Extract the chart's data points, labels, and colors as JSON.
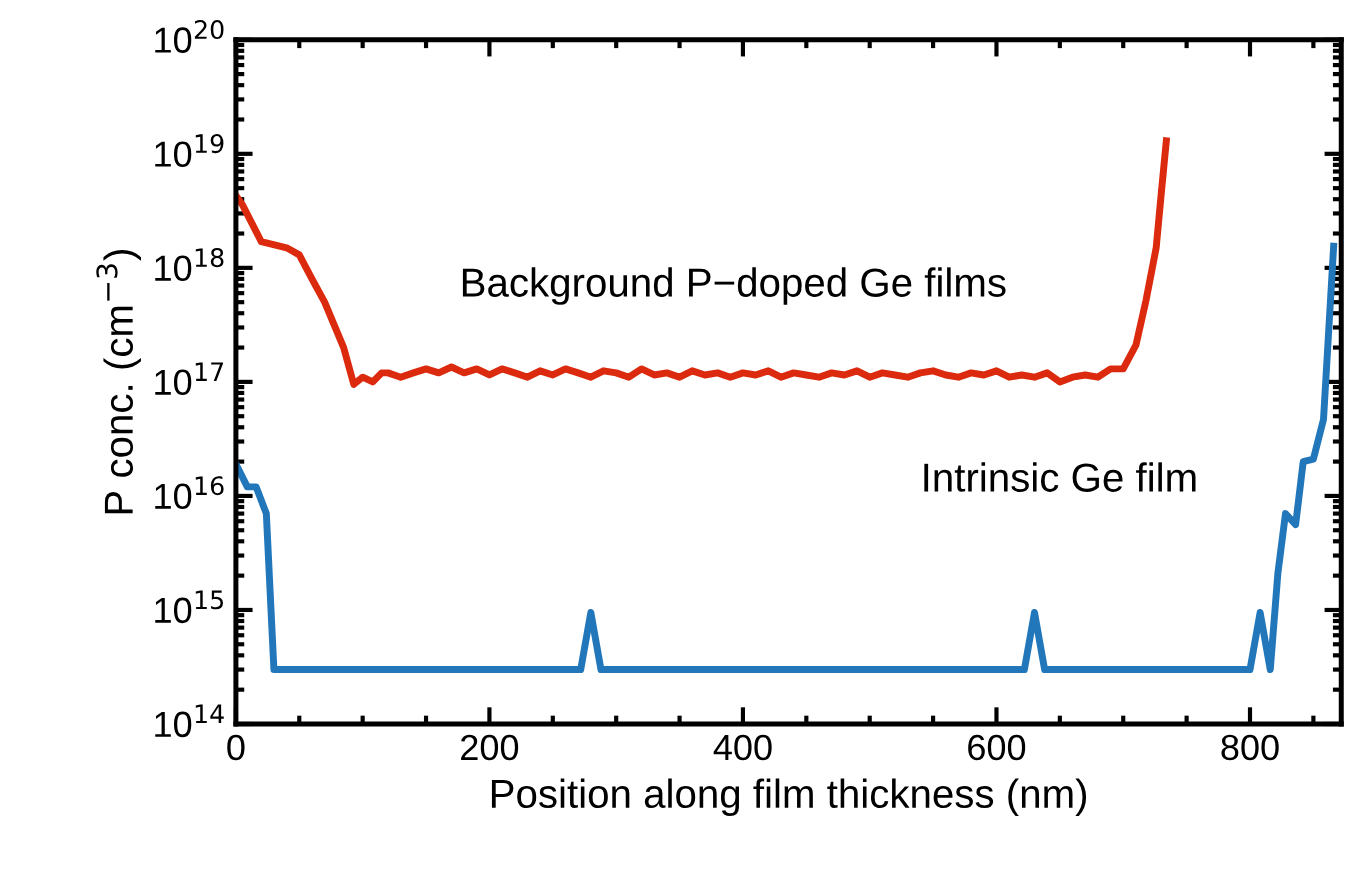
{
  "chart_data": {
    "type": "line",
    "xlabel": "Position along film thickness (nm)",
    "ylabel": "P conc. (cm$^{−3}$)",
    "log": "y",
    "xlim": [
      0,
      872
    ],
    "xticks": [
      0,
      200,
      400,
      600,
      800
    ],
    "ylim": [
      100000000000000.0,
      1e+20
    ],
    "yticks": [
      {
        "value": 100000000000000.0,
        "label": "10$^{14}$"
      },
      {
        "value": 1000000000000000.0,
        "label": "10$^{15}$"
      },
      {
        "value": 1e+16,
        "label": "10$^{16}$"
      },
      {
        "value": 1e+17,
        "label": "10$^{17}$"
      },
      {
        "value": 1e+18,
        "label": "10$^{18}$"
      },
      {
        "value": 1e+19,
        "label": "10$^{19}$"
      },
      {
        "value": 1e+20,
        "label": "10$^{20}$"
      }
    ],
    "grid": false,
    "legend": false,
    "marker": "none",
    "line_style": "solid",
    "series": [
      {
        "name": "Background P−doped Ge films",
        "color": "#dc2a0e",
        "x": [
          0,
          5,
          20,
          40,
          50,
          60,
          70,
          85,
          93,
          100,
          108,
          115,
          120,
          130,
          140,
          150,
          160,
          170,
          180,
          190,
          200,
          210,
          220,
          230,
          240,
          250,
          260,
          270,
          280,
          290,
          300,
          310,
          320,
          330,
          340,
          350,
          360,
          370,
          380,
          390,
          400,
          410,
          420,
          430,
          440,
          450,
          460,
          470,
          480,
          490,
          500,
          510,
          520,
          530,
          540,
          550,
          560,
          570,
          580,
          590,
          600,
          610,
          620,
          630,
          640,
          650,
          660,
          670,
          680,
          690,
          700,
          710,
          718,
          726,
          730,
          734
        ],
        "values": [
          4.3e+18,
          3.6e+18,
          1.7e+18,
          1.5e+18,
          1.3e+18,
          8e+17,
          5e+17,
          2e+17,
          9.5e+16,
          1.1e+17,
          1e+17,
          1.2e+17,
          1.2e+17,
          1.1e+17,
          1.2e+17,
          1.3e+17,
          1.2e+17,
          1.35e+17,
          1.2e+17,
          1.3e+17,
          1.15e+17,
          1.3e+17,
          1.2e+17,
          1.1e+17,
          1.25e+17,
          1.15e+17,
          1.3e+17,
          1.2e+17,
          1.1e+17,
          1.25e+17,
          1.2e+17,
          1.1e+17,
          1.3e+17,
          1.15e+17,
          1.2e+17,
          1.1e+17,
          1.25e+17,
          1.15e+17,
          1.2e+17,
          1.1e+17,
          1.2e+17,
          1.15e+17,
          1.25e+17,
          1.1e+17,
          1.2e+17,
          1.15e+17,
          1.1e+17,
          1.2e+17,
          1.15e+17,
          1.25e+17,
          1.1e+17,
          1.2e+17,
          1.15e+17,
          1.1e+17,
          1.2e+17,
          1.25e+17,
          1.15e+17,
          1.1e+17,
          1.2e+17,
          1.15e+17,
          1.25e+17,
          1.1e+17,
          1.15e+17,
          1.1e+17,
          1.2e+17,
          1e+17,
          1.1e+17,
          1.15e+17,
          1.1e+17,
          1.3e+17,
          1.3e+17,
          2.1e+17,
          5.2e+17,
          1.5e+18,
          4.5e+18,
          1.3e+19
        ]
      },
      {
        "name": "Intrinsic Ge film",
        "color": "#2277bb",
        "x": [
          0,
          9,
          16,
          24,
          30,
          272,
          280,
          288,
          622,
          630,
          638,
          800,
          808,
          816,
          822,
          828,
          836,
          842,
          850,
          858,
          866
        ],
        "values": [
          1.9e+16,
          1.2e+16,
          1.2e+16,
          7000000000000000.0,
          300000000000000.0,
          300000000000000.0,
          950000000000000.0,
          300000000000000.0,
          300000000000000.0,
          950000000000000.0,
          300000000000000.0,
          300000000000000.0,
          950000000000000.0,
          300000000000000.0,
          2100000000000000.0,
          7000000000000000.0,
          5600000000000000.0,
          2e+16,
          2.1e+16,
          4.7e+16,
          1.55e+18
        ]
      }
    ]
  }
}
